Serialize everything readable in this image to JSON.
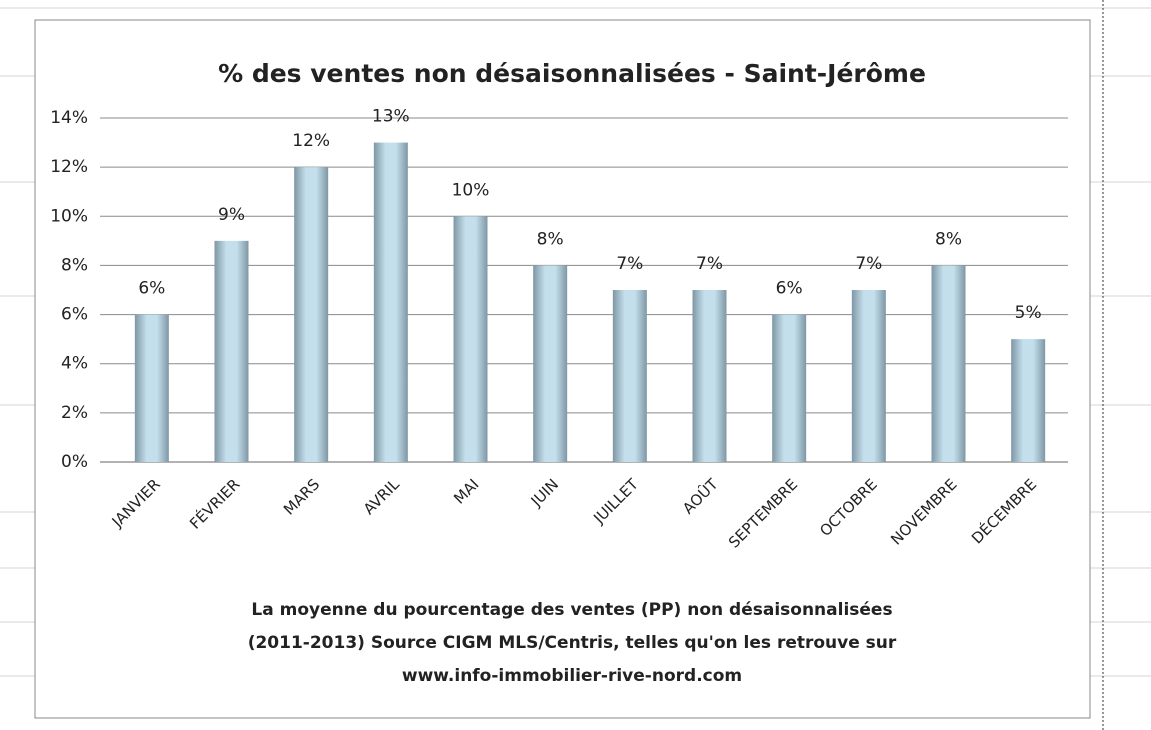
{
  "chart_data": {
    "type": "bar",
    "title": "% des ventes non désaisonnalisées - Saint-Jérôme",
    "categories": [
      "JANVIER",
      "FÉVRIER",
      "MARS",
      "AVRIL",
      "MAI",
      "JUIN",
      "JUILLET",
      "AOÛT",
      "SEPTEMBRE",
      "OCTOBRE",
      "NOVEMBRE",
      "DÉCEMBRE"
    ],
    "values": [
      6,
      9,
      12,
      13,
      10,
      8,
      7,
      7,
      6,
      7,
      8,
      5
    ],
    "value_labels": [
      "6%",
      "9%",
      "12%",
      "13%",
      "10%",
      "8%",
      "7%",
      "7%",
      "6%",
      "7%",
      "8%",
      "5%"
    ],
    "color": "#c4dfec",
    "ylim": [
      0,
      14
    ],
    "yticks": [
      {
        "value": 0,
        "label": "0%"
      },
      {
        "value": 2,
        "label": "2%"
      },
      {
        "value": 4,
        "label": "4%"
      },
      {
        "value": 6,
        "label": "6%"
      },
      {
        "value": 8,
        "label": "8%"
      },
      {
        "value": 10,
        "label": "10%"
      },
      {
        "value": 12,
        "label": "12%"
      },
      {
        "value": 14,
        "label": "14%"
      }
    ],
    "grid": true,
    "xlabel": [
      "La moyenne du pourcentage des ventes (PP) non désaisonnalisées",
      "(2011-2013) Source CIGM MLS/Centris, telles qu'on les retrouve sur",
      "www.info-immobilier-rive-nord.com"
    ]
  }
}
